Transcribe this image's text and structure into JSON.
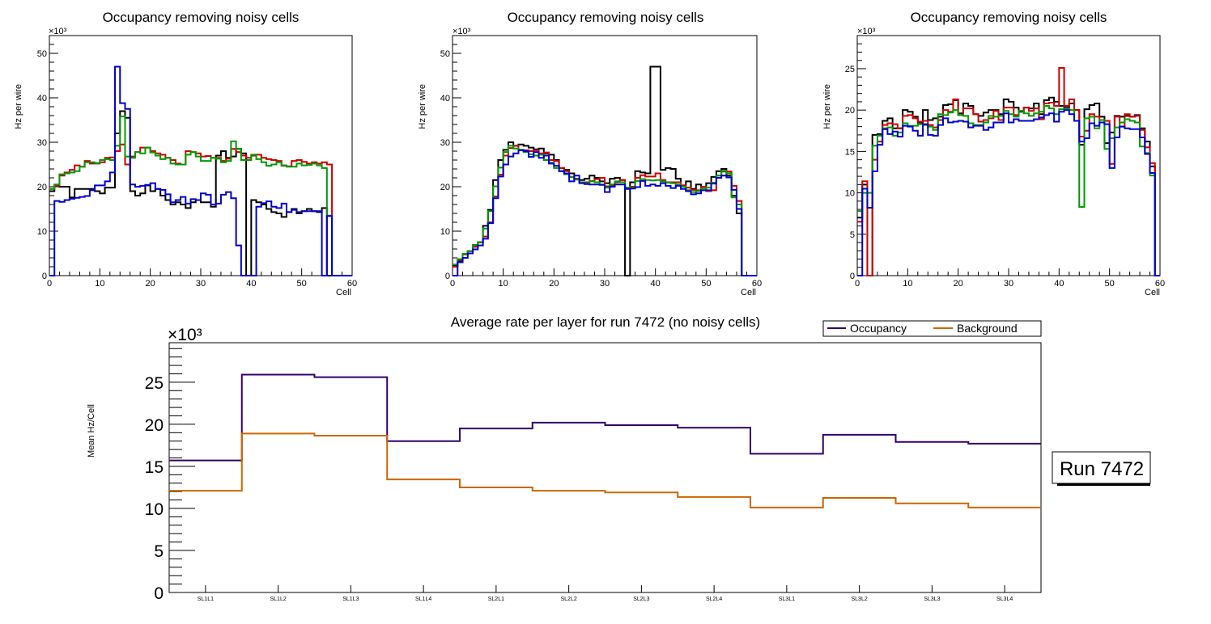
{
  "chart_data": [
    {
      "type": "line",
      "step": true,
      "title": "Occupancy removing noisy cells",
      "xlabel": "Cell",
      "ylabel": "Hz per wire",
      "yexponent": "×10³",
      "xlim": [
        0,
        60
      ],
      "ylim": [
        0,
        54
      ],
      "xticks": [
        0,
        10,
        20,
        30,
        40,
        50,
        60
      ],
      "yticks": [
        0,
        10,
        20,
        30,
        40,
        50
      ],
      "series": [
        {
          "name": "black",
          "color": "#000000",
          "values": [
            19,
            20.1,
            20,
            20,
            17.6,
            19.5,
            19.5,
            19.5,
            19.5,
            19,
            18.5,
            19.8,
            19.8,
            32,
            37,
            35.5,
            19,
            18,
            18.5,
            20.3,
            19,
            19.5,
            18,
            17,
            16,
            16.5,
            16,
            15.2,
            16.5,
            17,
            16.5,
            16.5,
            15.5,
            27,
            28,
            26.5,
            26.8,
            28.5,
            27.5,
            0,
            17,
            16.5,
            16,
            15,
            14.3,
            14,
            13.2,
            14.3,
            15,
            14,
            14.5,
            15,
            14.5,
            14.3,
            15.2,
            0,
            0,
            0,
            0,
            0
          ]
        },
        {
          "name": "red",
          "color": "#cc0000",
          "values": [
            19.5,
            20.2,
            22.5,
            23.2,
            23.8,
            24.8,
            24.5,
            25.8,
            25.2,
            25.2,
            25.5,
            26.5,
            26.6,
            28,
            29.5,
            25,
            26.8,
            27.8,
            28.8,
            28.8,
            28,
            27.5,
            27.2,
            26.5,
            26,
            25.2,
            25,
            28,
            27.8,
            27.5,
            26.8,
            26.9,
            26.5,
            26.5,
            25.8,
            26.3,
            28.5,
            27.8,
            27,
            26.5,
            27,
            27.2,
            26.5,
            26.2,
            26,
            25.8,
            24.8,
            24.6,
            25.8,
            26,
            25.6,
            25.2,
            25.5,
            25.2,
            25.5,
            25,
            0,
            0,
            0,
            0
          ]
        },
        {
          "name": "green",
          "color": "#009900",
          "values": [
            19.5,
            20.5,
            22.8,
            23,
            23.2,
            23.5,
            24.5,
            25.5,
            25.5,
            25.3,
            26,
            26.2,
            26,
            29.2,
            35.8,
            26.8,
            26.5,
            27.8,
            27.5,
            28.8,
            27.7,
            27,
            26.2,
            26.5,
            25.2,
            25,
            25,
            27.2,
            27.8,
            26.8,
            25.8,
            25.8,
            26.5,
            26.3,
            25.5,
            25.8,
            30.2,
            28.5,
            26,
            26,
            27.2,
            26.2,
            25.5,
            24.7,
            25,
            25.5,
            24.7,
            24.5,
            24.5,
            25.2,
            24.8,
            24.9,
            25.2,
            24.8,
            24.2,
            13.5,
            0,
            0,
            0,
            0
          ]
        },
        {
          "name": "blue",
          "color": "#0000cc",
          "values": [
            0,
            16.8,
            16.6,
            17,
            17.3,
            17.5,
            17.7,
            17.9,
            19.2,
            20.3,
            20.3,
            21.2,
            23.2,
            47,
            38.8,
            37.5,
            20.5,
            20,
            20.2,
            20.4,
            20.8,
            19.5,
            19.3,
            18.3,
            16.5,
            17,
            17.7,
            16.2,
            17.2,
            17,
            18.5,
            18.2,
            16,
            16.2,
            18.2,
            18.8,
            17.4,
            6.8,
            0,
            0,
            0,
            15.5,
            16.3,
            16.7,
            15.5,
            15.2,
            16.2,
            14.3,
            14.8,
            14.3,
            14.5,
            14.5,
            14.5,
            14.5,
            0,
            13.4,
            0,
            0,
            0,
            0
          ]
        }
      ]
    },
    {
      "type": "line",
      "step": true,
      "title": "Occupancy removing noisy cells",
      "xlabel": "Cell",
      "ylabel": "Hz per wire",
      "yexponent": "×10³",
      "xlim": [
        0,
        60
      ],
      "ylim": [
        0,
        54
      ],
      "xticks": [
        0,
        10,
        20,
        30,
        40,
        50,
        60
      ],
      "yticks": [
        0,
        10,
        20,
        30,
        40,
        50
      ],
      "series": [
        {
          "name": "black",
          "color": "#000000",
          "values": [
            2.2,
            3.2,
            4.8,
            5.5,
            6.5,
            7.5,
            11.2,
            14.8,
            21.5,
            26,
            28.3,
            30,
            29.2,
            29.5,
            29.2,
            28.8,
            28.4,
            28.6,
            27.5,
            27.2,
            26,
            24.2,
            23.8,
            23,
            21.8,
            21.5,
            21.8,
            22.5,
            22,
            21.2,
            20.8,
            21.8,
            22,
            21.5,
            0,
            21,
            23.5,
            23.2,
            23,
            47,
            47,
            23.8,
            24.2,
            24,
            21.8,
            20.3,
            21.2,
            19.5,
            20.5,
            20,
            20.8,
            22.2,
            23.5,
            24,
            22.5,
            18,
            14,
            0,
            0,
            0
          ]
        },
        {
          "name": "red",
          "color": "#cc0000",
          "values": [
            2,
            3.5,
            4.8,
            5.5,
            6.5,
            7.5,
            8.8,
            12,
            17.8,
            22.7,
            27,
            28.7,
            29.2,
            28.3,
            28.2,
            28,
            28.2,
            27.5,
            27.7,
            26,
            25.8,
            24.2,
            23.5,
            22.2,
            21.8,
            21,
            21,
            21.3,
            21.7,
            22,
            20.1,
            20.3,
            21,
            21.5,
            19.8,
            20,
            22,
            22.6,
            22.3,
            22.3,
            23,
            21.5,
            21,
            21,
            21,
            20.3,
            19.8,
            19.3,
            19.2,
            20,
            19,
            19.2,
            22.5,
            23.4,
            23.4,
            20.2,
            16.8,
            0,
            0,
            0
          ]
        },
        {
          "name": "green",
          "color": "#009900",
          "values": [
            2.5,
            3.7,
            4.9,
            5.5,
            6.9,
            7.5,
            10.6,
            14.5,
            20.1,
            24.3,
            27.8,
            29.2,
            28.6,
            28.3,
            27.8,
            27.3,
            27,
            27.2,
            26,
            25.4,
            24.2,
            23.5,
            22.8,
            22.2,
            21.6,
            21,
            20.8,
            21.2,
            21,
            20.5,
            19.8,
            20.5,
            21.2,
            21,
            19.8,
            19.8,
            21.3,
            21.7,
            21.5,
            21.4,
            21.5,
            21.2,
            20.9,
            20.8,
            20.5,
            20,
            19.2,
            18.8,
            19,
            19.6,
            19.8,
            20.9,
            22.5,
            23.6,
            23,
            17.6,
            16,
            0,
            0,
            0
          ]
        },
        {
          "name": "blue",
          "color": "#0000cc",
          "values": [
            0,
            3,
            4,
            5,
            5.9,
            6.8,
            8.3,
            11.8,
            17.4,
            22.3,
            25,
            26.8,
            27.5,
            28.2,
            28,
            26.7,
            27.8,
            26.5,
            27,
            25.2,
            24.7,
            23.5,
            23,
            21.2,
            22.5,
            20.8,
            20.6,
            20.5,
            20.5,
            20.4,
            18.8,
            20,
            20.5,
            20.5,
            19.5,
            19.6,
            19.9,
            21.3,
            20.2,
            20.5,
            20.2,
            20.8,
            20.2,
            19.7,
            20.2,
            19.5,
            19,
            18.3,
            18.5,
            19.2,
            19.2,
            20.7,
            22,
            22.5,
            22.1,
            19.3,
            15,
            0,
            0,
            0
          ]
        }
      ]
    },
    {
      "type": "line",
      "step": true,
      "title": "Occupancy removing noisy cells",
      "xlabel": "Cell",
      "ylabel": "Hz per wire",
      "yexponent": "×10³",
      "xlim": [
        0,
        60
      ],
      "ylim": [
        0,
        29
      ],
      "xticks": [
        0,
        10,
        20,
        30,
        40,
        50,
        60
      ],
      "yticks": [
        0,
        5,
        10,
        15,
        20,
        25
      ],
      "series": [
        {
          "name": "black",
          "color": "#000000",
          "values": [
            7,
            11,
            0,
            17,
            17.1,
            18.7,
            19,
            17.8,
            17.8,
            20,
            19.8,
            19.2,
            18.5,
            20,
            18.8,
            19,
            19.2,
            20.6,
            20.7,
            21.2,
            19.6,
            20.8,
            20.5,
            19.5,
            19.3,
            19.7,
            20,
            20,
            19.5,
            21.3,
            21,
            20.3,
            19.8,
            20.3,
            20.2,
            20.8,
            19.5,
            21.2,
            21.5,
            21,
            20.5,
            20.3,
            20.8,
            20,
            15.8,
            20.1,
            20.6,
            20.8,
            19.2,
            16,
            17.3,
            19.3,
            19.2,
            19.3,
            19.2,
            19.4,
            17.8,
            16.2,
            13.2,
            0
          ]
        },
        {
          "name": "red",
          "color": "#cc0000",
          "values": [
            6.5,
            11.4,
            0,
            14,
            16.2,
            18.2,
            18.4,
            18.3,
            17.8,
            19.3,
            19.4,
            19,
            18.6,
            18.7,
            18.2,
            17.9,
            18.8,
            20,
            19.8,
            21.3,
            19.4,
            20.2,
            20.2,
            19.5,
            18.6,
            18.8,
            19,
            19.9,
            18.8,
            20.3,
            20.3,
            19.4,
            19.9,
            20.3,
            19.9,
            20.2,
            18.9,
            20.8,
            20.9,
            20.5,
            25.1,
            20.5,
            21.3,
            20,
            16.8,
            17.5,
            19.5,
            19.2,
            18.5,
            18.7,
            13.5,
            19.2,
            18,
            19.5,
            19.2,
            19.3,
            17.6,
            15.5,
            13.6,
            0
          ]
        },
        {
          "name": "green",
          "color": "#009900",
          "values": [
            7.8,
            10,
            10,
            15.7,
            16.9,
            17.8,
            17.9,
            16.9,
            17.3,
            18.4,
            18.1,
            18.1,
            18.3,
            18.2,
            18,
            17.6,
            19.5,
            19.4,
            19.7,
            20,
            19.4,
            19.3,
            18.4,
            18.2,
            18.2,
            18.5,
            19.3,
            19.2,
            19.3,
            19.9,
            19.5,
            19.2,
            19.9,
            19.6,
            19.3,
            19.6,
            19.8,
            20.5,
            20.2,
            19.5,
            20.1,
            20.2,
            20,
            18.7,
            8.3,
            19,
            19.2,
            17.8,
            18.8,
            15.3,
            16.6,
            17.9,
            18.5,
            18.9,
            18.7,
            18.5,
            15.6,
            14.8,
            12.1,
            0
          ]
        },
        {
          "name": "blue",
          "color": "#0000cc",
          "values": [
            0,
            10.5,
            8.2,
            12.6,
            15.8,
            17.7,
            17.1,
            17.4,
            16.8,
            18.1,
            18,
            17.5,
            16.9,
            18.3,
            17,
            16.9,
            18.2,
            19,
            18.5,
            18.6,
            18.7,
            18.6,
            17.9,
            18.1,
            18.1,
            17.6,
            17.9,
            18.5,
            18.5,
            19.6,
            18.5,
            18.9,
            18.7,
            18.7,
            18.7,
            18.9,
            19.1,
            19.4,
            19.6,
            18.6,
            19.8,
            20,
            19.5,
            18.7,
            16.2,
            16.6,
            18.4,
            18.1,
            18.5,
            18.3,
            13,
            16.7,
            18,
            17.8,
            17.7,
            17.7,
            16.7,
            14.7,
            12.4,
            0
          ]
        }
      ]
    },
    {
      "type": "line",
      "step": true,
      "title": "Average rate per layer for run 7472 (no noisy cells)",
      "xlabel": "",
      "ylabel": "Mean Hz/Cell",
      "yexponent": "×10³",
      "categories": [
        "SL1L1",
        "SL1L2",
        "SL1L3",
        "SL1L4",
        "SL2L1",
        "SL2L2",
        "SL2L3",
        "SL2L4",
        "SL3L1",
        "SL3L2",
        "SL3L3",
        "SL3L4"
      ],
      "ylim": [
        0,
        29.7
      ],
      "yticks": [
        0,
        5,
        10,
        15,
        20,
        25
      ],
      "legend": {
        "placement": "top-right",
        "entries": [
          "Occupancy",
          "Background"
        ]
      },
      "series": [
        {
          "name": "Occupancy",
          "color": "#330066",
          "values": [
            15.7,
            25.9,
            25.6,
            18.0,
            19.5,
            20.2,
            19.9,
            19.6,
            16.5,
            18.75,
            17.9,
            17.7
          ]
        },
        {
          "name": "Background",
          "color": "#cc6600",
          "values": [
            12.1,
            18.9,
            18.65,
            13.45,
            12.5,
            12.1,
            11.9,
            11.35,
            10.1,
            11.25,
            10.6,
            10.1
          ]
        }
      ],
      "annotation": "Run 7472"
    }
  ]
}
